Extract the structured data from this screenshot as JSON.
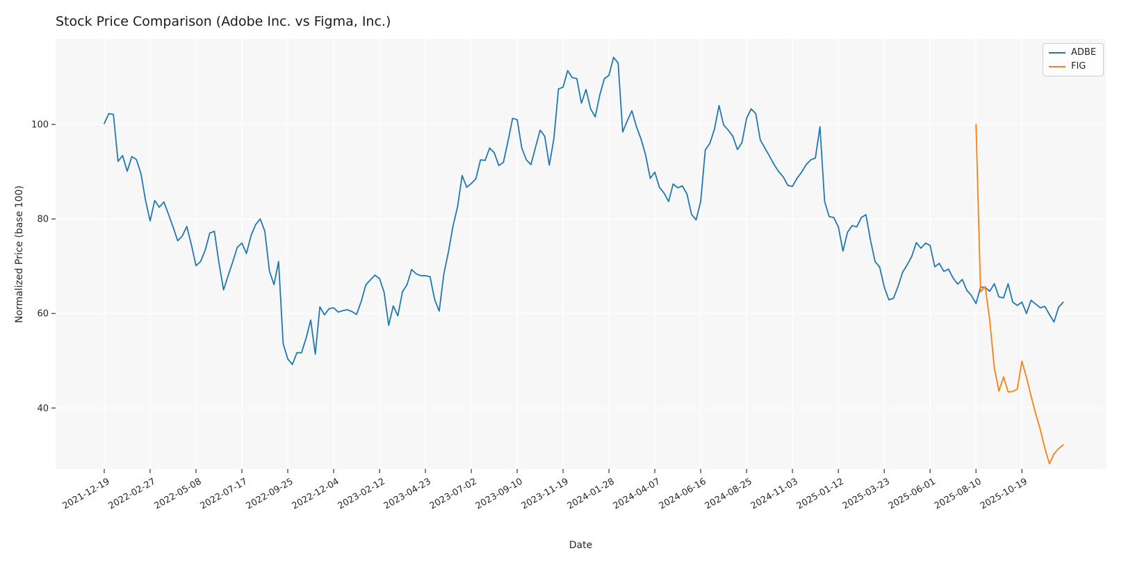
{
  "figure": {
    "title": "Stock Price Comparison (Adobe Inc. vs Figma, Inc.)",
    "xlabel": "Date",
    "ylabel": "Normalized Price (base 100)"
  },
  "legend": {
    "items": [
      {
        "label": "ADBE",
        "color": "#1f77b4"
      },
      {
        "label": "FIG",
        "color": "#ff7f0e"
      }
    ]
  },
  "colors": {
    "adbe_line": "#1f77b4",
    "fig_line": "#ff7f0e",
    "plot_background": "#f7f7f7",
    "gridline": "#ffffff",
    "tick_mark": "#333333",
    "text": "#262626"
  },
  "chart_data": {
    "type": "line",
    "title": "Stock Price Comparison (Adobe Inc. vs Figma, Inc.)",
    "xlabel": "Date",
    "ylabel": "Normalized Price (base 100)",
    "grid": true,
    "legend_position": "upper right",
    "x_unit": "weeks since 2021-12-19 (weekly data)",
    "x_tick_weeks": [
      0,
      10,
      20,
      30,
      40,
      50,
      60,
      70,
      80,
      90,
      100,
      110,
      120,
      130,
      140,
      150,
      160,
      170,
      180,
      190,
      200
    ],
    "x_tick_labels": [
      "2021-12-19",
      "2022-02-27",
      "2022-05-08",
      "2022-07-17",
      "2022-09-25",
      "2022-12-04",
      "2023-02-12",
      "2023-04-23",
      "2023-07-02",
      "2023-09-10",
      "2023-11-19",
      "2024-01-28",
      "2024-04-07",
      "2024-06-16",
      "2024-08-25",
      "2024-11-03",
      "2025-01-12",
      "2025-03-23",
      "2025-06-01",
      "2025-08-10",
      "2025-10-19"
    ],
    "y_ticks": [
      40,
      60,
      80,
      100
    ],
    "ylim": [
      27.1,
      118.1
    ],
    "xlim_weeks": [
      -10.6,
      218.3
    ],
    "series": [
      {
        "name": "ADBE",
        "color": "#1f77b4",
        "start_week": 0,
        "values": [
          100.2,
          102.3,
          102.1,
          92.2,
          93.4,
          90.1,
          93.2,
          92.6,
          89.6,
          83.9,
          79.6,
          83.9,
          82.5,
          83.6,
          81.0,
          78.3,
          75.4,
          76.4,
          78.4,
          74.5,
          70.1,
          71.0,
          73.4,
          77.0,
          77.4,
          70.7,
          65.0,
          68.0,
          70.9,
          74.0,
          74.9,
          72.7,
          76.5,
          78.8,
          80.0,
          77.4,
          69.0,
          66.1,
          71.0,
          53.6,
          50.4,
          49.2,
          51.7,
          51.7,
          54.8,
          58.6,
          51.4,
          61.4,
          59.7,
          61.0,
          61.2,
          60.3,
          60.6,
          60.8,
          60.4,
          59.8,
          62.5,
          66.0,
          67.1,
          68.1,
          67.4,
          64.5,
          57.5,
          61.6,
          59.5,
          64.6,
          66.1,
          69.3,
          68.4,
          68.0,
          68.0,
          67.8,
          63.0,
          60.5,
          68.3,
          73.0,
          78.5,
          82.6,
          89.2,
          86.7,
          87.5,
          88.5,
          92.5,
          92.4,
          95.0,
          94.0,
          91.3,
          92.0,
          96.5,
          101.3,
          101.0,
          95.0,
          92.5,
          91.5,
          95.2,
          98.8,
          97.5,
          91.4,
          97.0,
          107.5,
          107.9,
          111.4,
          109.9,
          109.7,
          104.5,
          107.4,
          103.3,
          101.6,
          106.2,
          109.7,
          110.4,
          114.2,
          113.0,
          98.4,
          100.8,
          102.9,
          99.5,
          96.9,
          93.5,
          88.6,
          89.9,
          86.7,
          85.5,
          83.7,
          87.4,
          86.6,
          87.0,
          85.3,
          81.0,
          79.8,
          83.7,
          94.6,
          96.0,
          99.0,
          104.0,
          99.9,
          98.8,
          97.5,
          94.7,
          96.2,
          101.3,
          103.3,
          102.3,
          96.7,
          95.0,
          93.3,
          91.5,
          90.0,
          88.9,
          87.1,
          86.9,
          88.6,
          89.9,
          91.5,
          92.5,
          92.9,
          99.5,
          83.7,
          80.5,
          80.3,
          78.3,
          73.2,
          77.2,
          78.6,
          78.3,
          80.3,
          80.9,
          75.5,
          71.0,
          69.8,
          65.6,
          62.9,
          63.2,
          65.7,
          68.7,
          70.3,
          72.1,
          75.0,
          73.8,
          74.9,
          74.4,
          69.9,
          70.6,
          68.9,
          69.4,
          67.5,
          66.2,
          67.2,
          64.9,
          63.8,
          62.1,
          65.6,
          65.5,
          64.7,
          66.3,
          63.5,
          63.3,
          66.3,
          62.4,
          61.7,
          62.4,
          60.0,
          62.8,
          62.0,
          61.2,
          61.5,
          59.8,
          58.2,
          61.3,
          62.4
        ]
      },
      {
        "name": "FIG",
        "color": "#ff7f0e",
        "start_week": 190,
        "values": [
          100.0,
          64.6,
          65.7,
          58.5,
          48.4,
          43.6,
          46.6,
          43.4,
          43.5,
          44.0,
          49.9,
          46.5,
          42.5,
          38.8,
          35.5,
          31.5,
          28.2,
          30.3,
          31.4,
          32.2
        ]
      }
    ]
  }
}
